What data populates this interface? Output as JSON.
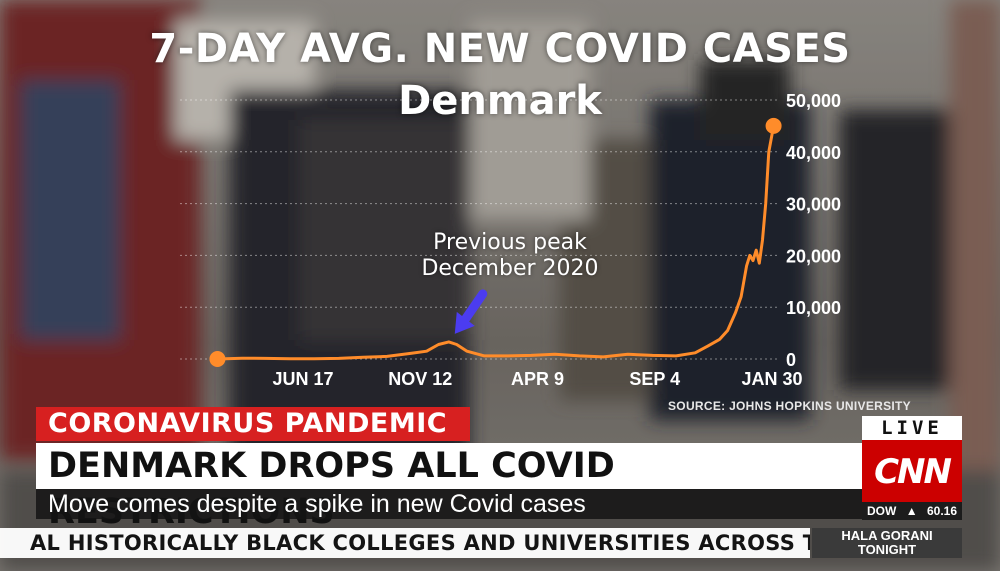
{
  "chart_data": {
    "type": "line",
    "title": "7-DAY AVG. NEW COVID CASES",
    "subtitle": "Denmark",
    "xlabel": "",
    "ylabel": "",
    "ylim": [
      0,
      50000
    ],
    "y_ticks": [
      0,
      10000,
      20000,
      30000,
      40000,
      50000
    ],
    "y_tick_labels": [
      "0",
      "10,000",
      "20,000",
      "30,000",
      "40,000",
      "50,000"
    ],
    "x_tick_labels": [
      "JUN 17",
      "NOV 12",
      "APR 9",
      "SEP 4",
      "JAN 30"
    ],
    "x_tick_dates": [
      "2020-06-17",
      "2020-11-12",
      "2021-04-09",
      "2021-09-04",
      "2022-01-30"
    ],
    "grid": true,
    "start_marker": {
      "date": "2020-03-01",
      "value": 0
    },
    "end_marker": {
      "date": "2022-02-01",
      "value": 45000
    },
    "series": [
      {
        "color": "#ff8c2a",
        "points": [
          [
            "2020-03-01",
            0
          ],
          [
            "2020-04-01",
            150
          ],
          [
            "2020-05-01",
            120
          ],
          [
            "2020-06-01",
            50
          ],
          [
            "2020-07-01",
            60
          ],
          [
            "2020-08-01",
            120
          ],
          [
            "2020-09-01",
            350
          ],
          [
            "2020-10-01",
            500
          ],
          [
            "2020-11-01",
            1100
          ],
          [
            "2020-11-20",
            1500
          ],
          [
            "2020-12-05",
            2800
          ],
          [
            "2020-12-18",
            3300
          ],
          [
            "2020-12-28",
            2800
          ],
          [
            "2021-01-10",
            1500
          ],
          [
            "2021-02-01",
            600
          ],
          [
            "2021-03-01",
            600
          ],
          [
            "2021-04-01",
            700
          ],
          [
            "2021-05-01",
            900
          ],
          [
            "2021-06-01",
            600
          ],
          [
            "2021-07-01",
            400
          ],
          [
            "2021-08-01",
            900
          ],
          [
            "2021-09-01",
            700
          ],
          [
            "2021-10-01",
            600
          ],
          [
            "2021-10-25",
            1200
          ],
          [
            "2021-11-10",
            2500
          ],
          [
            "2021-11-25",
            3800
          ],
          [
            "2021-12-05",
            5500
          ],
          [
            "2021-12-15",
            9000
          ],
          [
            "2021-12-22",
            12000
          ],
          [
            "2021-12-29",
            18000
          ],
          [
            "2022-01-02",
            20000
          ],
          [
            "2022-01-06",
            19000
          ],
          [
            "2022-01-10",
            21000
          ],
          [
            "2022-01-14",
            18500
          ],
          [
            "2022-01-18",
            23000
          ],
          [
            "2022-01-22",
            30000
          ],
          [
            "2022-01-26",
            40000
          ],
          [
            "2022-02-01",
            45000
          ]
        ]
      }
    ],
    "annotation": {
      "lines": [
        "Previous peak",
        "December 2020"
      ],
      "arrow_color": "#4b3cf0",
      "points_to": [
        "2020-12-18",
        3300
      ]
    },
    "source": "SOURCE: JOHNS HOPKINS UNIVERSITY"
  },
  "lower_third": {
    "topic": "CORONAVIRUS PANDEMIC",
    "headline": "DENMARK DROPS ALL COVID RESTRICTIONS",
    "subheadline": "Move comes despite a spike in new Covid cases"
  },
  "bug": {
    "live": "LIVE",
    "logo_text": "CNN",
    "dow_label": "DOW",
    "dow_arrow": "▲",
    "dow_value": "60.16"
  },
  "ticker": {
    "text": "AL HISTORICALLY BLACK COLLEGES AND UNIVERSITIES ACROSS THE U.S. CA",
    "show_line1": "HALA GORANI",
    "show_line2": "TONIGHT"
  },
  "colors": {
    "accent": "#d72020",
    "line": "#ff8c2a",
    "arrow": "#4b3cf0",
    "cnn_red": "#cc0000"
  }
}
